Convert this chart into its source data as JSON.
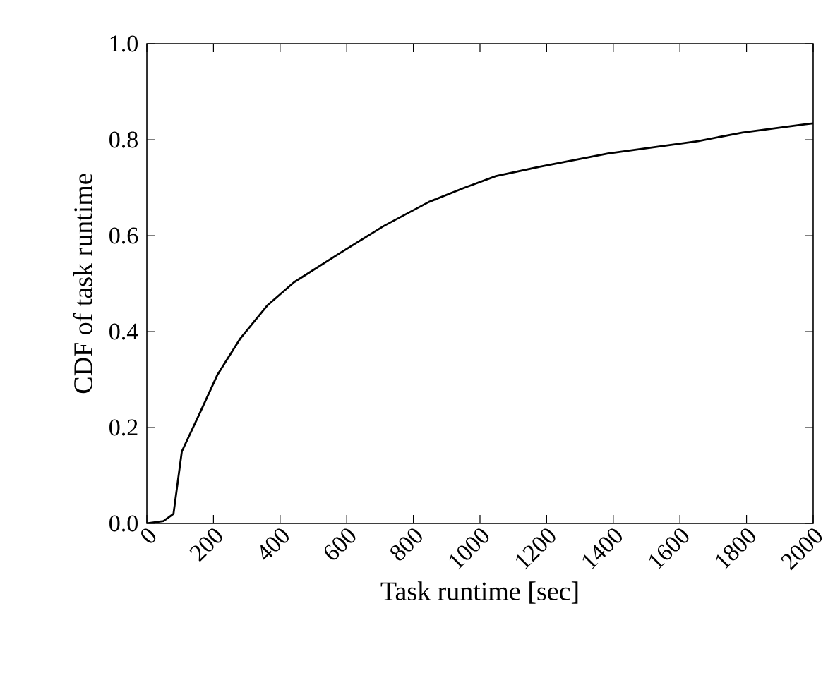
{
  "chart_data": {
    "type": "line",
    "xlabel": "Task runtime [sec]",
    "ylabel": "CDF of task runtime",
    "x": [
      0,
      50,
      80,
      105,
      159,
      212,
      280,
      361,
      442,
      576,
      711,
      846,
      954,
      1048,
      1182,
      1384,
      1654,
      1788,
      1977,
      2000
    ],
    "series": [
      {
        "color": "#000000",
        "values": [
          0,
          0.005,
          0.02,
          0.15,
          0.23,
          0.31,
          0.385,
          0.454,
          0.503,
          0.562,
          0.62,
          0.67,
          0.7,
          0.724,
          0.744,
          0.771,
          0.797,
          0.815,
          0.832,
          0.834
        ]
      }
    ],
    "xlim": [
      0,
      2000
    ],
    "ylim": [
      0,
      1.0
    ],
    "xticks": [
      0,
      200,
      400,
      600,
      800,
      1000,
      1200,
      1400,
      1600,
      1800,
      2000
    ],
    "yticks": [
      {
        "value": 0,
        "label": "0.0"
      },
      {
        "value": 0.2,
        "label": "0.2"
      },
      {
        "value": 0.4,
        "label": "0.4"
      },
      {
        "value": 0.6,
        "label": "0.6"
      },
      {
        "value": 0.8,
        "label": "0.8"
      },
      {
        "value": 1.0,
        "label": "1.0"
      }
    ],
    "grid": false,
    "marker": "none",
    "line_style": "solid"
  }
}
